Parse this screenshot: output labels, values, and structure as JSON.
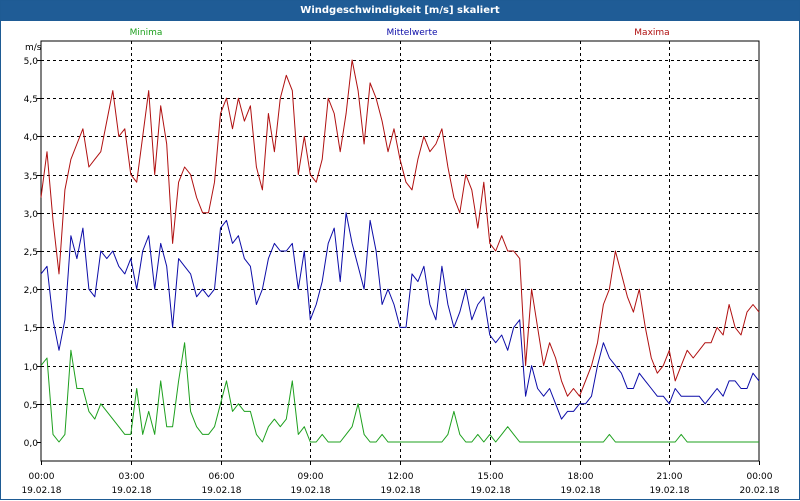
{
  "window": {
    "title": "Windgeschwindigkeit [m/s] skaliert"
  },
  "colors": {
    "titlebar_bg": "#1f5c96",
    "grid": "#000000",
    "axis_text": "#000000"
  },
  "chart_data": {
    "type": "line",
    "title": "Windgeschwindigkeit [m/s] skaliert",
    "ylabel": "m/s",
    "xlabel": "",
    "ylim": [
      0.0,
      5.0
    ],
    "yticks": [
      "0,0",
      "0,5",
      "1,0",
      "1,5",
      "2,0",
      "2,5",
      "3,0",
      "3,5",
      "4,0",
      "4,5",
      "5,0"
    ],
    "xticks": [
      {
        "time": "00:00",
        "date": "19.02.18"
      },
      {
        "time": "03:00",
        "date": "19.02.18"
      },
      {
        "time": "06:00",
        "date": "19.02.18"
      },
      {
        "time": "09:00",
        "date": "19.02.18"
      },
      {
        "time": "12:00",
        "date": "19.02.18"
      },
      {
        "time": "15:00",
        "date": "19.02.18"
      },
      {
        "time": "18:00",
        "date": "19.02.18"
      },
      {
        "time": "21:00",
        "date": "19.02.18"
      },
      {
        "time": "00:00",
        "date": "20.02.18"
      }
    ],
    "x_hours": [
      0,
      0.2,
      0.4,
      0.6,
      0.8,
      1,
      1.2,
      1.4,
      1.6,
      1.8,
      2,
      2.2,
      2.4,
      2.6,
      2.8,
      3,
      3.2,
      3.4,
      3.6,
      3.8,
      4,
      4.2,
      4.4,
      4.6,
      4.8,
      5,
      5.2,
      5.4,
      5.6,
      5.8,
      6,
      6.2,
      6.4,
      6.6,
      6.8,
      7,
      7.2,
      7.4,
      7.6,
      7.8,
      8,
      8.2,
      8.4,
      8.6,
      8.8,
      9,
      9.2,
      9.4,
      9.6,
      9.8,
      10,
      10.2,
      10.4,
      10.6,
      10.8,
      11,
      11.2,
      11.4,
      11.6,
      11.8,
      12,
      12.2,
      12.4,
      12.6,
      12.8,
      13,
      13.2,
      13.4,
      13.6,
      13.8,
      14,
      14.2,
      14.4,
      14.6,
      14.8,
      15,
      15.2,
      15.4,
      15.6,
      15.8,
      16,
      16.2,
      16.4,
      16.6,
      16.8,
      17,
      17.2,
      17.4,
      17.6,
      17.8,
      18,
      18.2,
      18.4,
      18.6,
      18.8,
      19,
      19.2,
      19.4,
      19.6,
      19.8,
      20,
      20.2,
      20.4,
      20.6,
      20.8,
      21,
      21.2,
      21.4,
      21.6,
      21.8,
      22,
      22.2,
      22.4,
      22.6,
      22.8,
      23,
      23.2,
      23.4,
      23.6,
      23.8,
      24
    ],
    "series": [
      {
        "name": "Maxima",
        "color": "#b01010",
        "values": [
          3.2,
          3.8,
          2.9,
          2.2,
          3.3,
          3.7,
          3.9,
          4.1,
          3.6,
          3.7,
          3.8,
          4.2,
          4.6,
          4.0,
          4.1,
          3.5,
          3.4,
          4.0,
          4.6,
          3.5,
          4.4,
          3.9,
          2.6,
          3.4,
          3.6,
          3.5,
          3.2,
          3.0,
          3.0,
          3.4,
          4.3,
          4.5,
          4.1,
          4.5,
          4.2,
          4.4,
          3.6,
          3.3,
          4.3,
          3.8,
          4.5,
          4.8,
          4.6,
          3.5,
          4.0,
          3.5,
          3.4,
          3.7,
          4.5,
          4.3,
          3.8,
          4.3,
          5.0,
          4.6,
          3.9,
          4.7,
          4.5,
          4.2,
          3.8,
          4.1,
          3.7,
          3.4,
          3.3,
          3.7,
          4.0,
          3.8,
          3.9,
          4.1,
          3.6,
          3.2,
          3.0,
          3.5,
          3.3,
          2.8,
          3.4,
          2.6,
          2.5,
          2.7,
          2.5,
          2.5,
          2.4,
          1.0,
          2.0,
          1.5,
          1.0,
          1.3,
          1.1,
          0.8,
          0.6,
          0.7,
          0.6,
          0.8,
          1.0,
          1.3,
          1.8,
          2.0,
          2.5,
          2.2,
          1.9,
          1.7,
          2.0,
          1.5,
          1.1,
          0.9,
          1.0,
          1.2,
          0.8,
          1.0,
          1.2,
          1.1,
          1.2,
          1.3,
          1.3,
          1.5,
          1.4,
          1.8,
          1.5,
          1.4,
          1.7,
          1.8,
          1.7
        ]
      },
      {
        "name": "Mittelwerte",
        "color": "#0c0ca8",
        "values": [
          2.2,
          2.3,
          1.6,
          1.2,
          1.6,
          2.7,
          2.4,
          2.8,
          2.0,
          1.9,
          2.5,
          2.4,
          2.5,
          2.3,
          2.2,
          2.4,
          2.0,
          2.5,
          2.7,
          2.0,
          2.6,
          2.3,
          1.5,
          2.4,
          2.3,
          2.2,
          1.9,
          2.0,
          1.9,
          2.0,
          2.8,
          2.9,
          2.6,
          2.7,
          2.4,
          2.3,
          1.8,
          2.0,
          2.4,
          2.6,
          2.5,
          2.5,
          2.6,
          2.0,
          2.5,
          1.6,
          1.8,
          2.1,
          2.6,
          2.8,
          2.1,
          3.0,
          2.6,
          2.3,
          2.0,
          2.9,
          2.5,
          1.8,
          2.0,
          1.8,
          1.5,
          1.5,
          2.2,
          2.1,
          2.3,
          1.8,
          1.6,
          2.3,
          1.8,
          1.5,
          1.7,
          2.0,
          1.6,
          1.8,
          1.9,
          1.4,
          1.3,
          1.4,
          1.2,
          1.5,
          1.6,
          0.6,
          1.0,
          0.7,
          0.6,
          0.7,
          0.5,
          0.3,
          0.4,
          0.4,
          0.5,
          0.5,
          0.6,
          1.0,
          1.3,
          1.1,
          1.0,
          0.9,
          0.7,
          0.7,
          0.9,
          0.8,
          0.7,
          0.6,
          0.6,
          0.5,
          0.7,
          0.6,
          0.6,
          0.6,
          0.6,
          0.5,
          0.6,
          0.7,
          0.6,
          0.8,
          0.8,
          0.7,
          0.7,
          0.9,
          0.8
        ]
      },
      {
        "name": "Minima",
        "color": "#1ea01e",
        "values": [
          1.0,
          1.1,
          0.1,
          0.0,
          0.1,
          1.2,
          0.7,
          0.7,
          0.4,
          0.3,
          0.5,
          0.4,
          0.3,
          0.2,
          0.1,
          0.1,
          0.7,
          0.1,
          0.4,
          0.1,
          0.8,
          0.2,
          0.2,
          0.8,
          1.3,
          0.4,
          0.2,
          0.1,
          0.1,
          0.2,
          0.5,
          0.8,
          0.4,
          0.5,
          0.4,
          0.4,
          0.1,
          0.0,
          0.2,
          0.3,
          0.2,
          0.3,
          0.8,
          0.1,
          0.2,
          0.0,
          0.0,
          0.1,
          0.0,
          0.0,
          0.0,
          0.1,
          0.2,
          0.5,
          0.1,
          0.0,
          0.0,
          0.1,
          0.0,
          0.0,
          0.0,
          0.0,
          0.0,
          0.0,
          0.0,
          0.0,
          0.0,
          0.0,
          0.1,
          0.4,
          0.1,
          0.0,
          0.0,
          0.1,
          0.0,
          0.1,
          0.0,
          0.1,
          0.2,
          0.1,
          0.0,
          0.0,
          0.0,
          0.0,
          0.0,
          0.0,
          0.0,
          0.0,
          0.0,
          0.0,
          0.0,
          0.0,
          0.0,
          0.0,
          0.0,
          0.1,
          0.0,
          0.0,
          0.0,
          0.0,
          0.0,
          0.0,
          0.0,
          0.0,
          0.0,
          0.0,
          0.0,
          0.1,
          0.0,
          0.0,
          0.0,
          0.0,
          0.0,
          0.0,
          0.0,
          0.0,
          0.0,
          0.0,
          0.0,
          0.0,
          0.0
        ]
      }
    ],
    "grid": true,
    "legend_placement": "top"
  }
}
